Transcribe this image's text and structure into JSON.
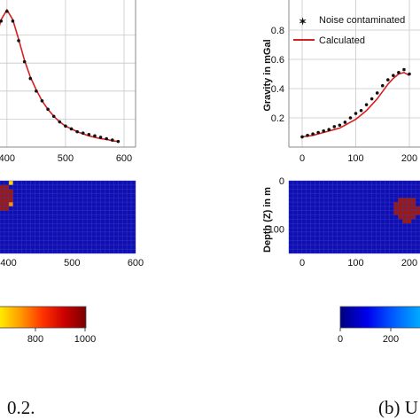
{
  "chart_data": [
    {
      "type": "line",
      "panel": "left-top",
      "xlim": [
        370,
        600
      ],
      "ylim": [
        0,
        1.0
      ],
      "x_ticks": [
        400,
        500,
        600
      ],
      "grid": true,
      "series": [
        {
          "style": "markers",
          "x": [
            370,
            380,
            390,
            400,
            410,
            420,
            430,
            440,
            450,
            460,
            470,
            480,
            490,
            500,
            510,
            520,
            530,
            540,
            550,
            560,
            570,
            580,
            590
          ],
          "y": [
            0.63,
            0.75,
            0.9,
            0.97,
            0.9,
            0.76,
            0.61,
            0.49,
            0.4,
            0.33,
            0.27,
            0.22,
            0.18,
            0.15,
            0.13,
            0.11,
            0.1,
            0.09,
            0.08,
            0.07,
            0.06,
            0.05,
            0.04
          ]
        },
        {
          "style": "line",
          "color": "#d61f1f",
          "x": [
            370,
            380,
            390,
            400,
            410,
            420,
            430,
            440,
            450,
            460,
            470,
            480,
            490,
            500,
            510,
            520,
            530,
            540,
            550,
            560,
            570,
            580,
            590
          ],
          "y": [
            0.62,
            0.76,
            0.91,
            0.98,
            0.91,
            0.77,
            0.62,
            0.5,
            0.41,
            0.33,
            0.27,
            0.22,
            0.18,
            0.15,
            0.13,
            0.11,
            0.095,
            0.08,
            0.07,
            0.06,
            0.055,
            0.045,
            0.04
          ]
        }
      ]
    },
    {
      "type": "heatmap",
      "panel": "left-bottom",
      "xlim": [
        370,
        600
      ],
      "x_ticks": [
        400,
        500,
        600
      ],
      "grid": true,
      "background_color": "#1010b0",
      "body_color": "#9a1a10",
      "body": {
        "x_center": 393,
        "z_center": 35,
        "x_radius": 18,
        "z_radius": 23
      },
      "highlight_cells": [
        {
          "x": 405,
          "z": 8,
          "value": 650
        },
        {
          "x": 406,
          "z": 45,
          "value": 880
        }
      ]
    },
    {
      "type": "line",
      "panel": "right-top",
      "ylabel": "Gravity in mGal",
      "xlim": [
        -20,
        270
      ],
      "ylim": [
        0.0,
        0.9
      ],
      "x_ticks": [
        0,
        100,
        200
      ],
      "y_ticks": [
        0.2,
        0.4,
        0.6,
        0.8
      ],
      "grid": true,
      "legend": "top-left",
      "series": [
        {
          "name": "Noise contaminated",
          "style": "markers",
          "x": [
            0,
            10,
            20,
            30,
            40,
            50,
            60,
            70,
            80,
            90,
            100,
            110,
            120,
            130,
            140,
            150,
            160,
            170,
            180,
            190,
            200
          ],
          "y": [
            0.07,
            0.08,
            0.09,
            0.1,
            0.11,
            0.12,
            0.14,
            0.15,
            0.17,
            0.2,
            0.23,
            0.25,
            0.29,
            0.33,
            0.37,
            0.42,
            0.46,
            0.49,
            0.51,
            0.53,
            0.5
          ]
        },
        {
          "name": "Calculated",
          "style": "line",
          "color": "#d61f1f",
          "x": [
            0,
            10,
            20,
            30,
            40,
            50,
            60,
            70,
            80,
            90,
            100,
            110,
            120,
            130,
            140,
            150,
            160,
            170,
            180,
            190,
            200
          ],
          "y": [
            0.07,
            0.075,
            0.08,
            0.09,
            0.1,
            0.11,
            0.12,
            0.13,
            0.15,
            0.17,
            0.19,
            0.22,
            0.25,
            0.29,
            0.33,
            0.38,
            0.43,
            0.47,
            0.5,
            0.51,
            0.49
          ]
        }
      ]
    },
    {
      "type": "heatmap",
      "panel": "right-bottom",
      "ylabel": "Depth (Z) in m",
      "xlim": [
        -20,
        270
      ],
      "ylim": [
        150,
        0
      ],
      "x_ticks": [
        0,
        100,
        200
      ],
      "y_ticks": [
        0,
        100
      ],
      "grid": true,
      "background_color": "#1010b0",
      "body_color": "#9a1a10",
      "body": {
        "x_center": 195,
        "z_center": 60,
        "x_radius": 22,
        "z_radius": 28
      }
    }
  ],
  "colorbars": [
    {
      "panel": "left",
      "ticks": [
        "800",
        "1000"
      ],
      "colors": [
        "#ffee00",
        "#ff9900",
        "#ff3300",
        "#cc0000",
        "#7a0000"
      ]
    },
    {
      "panel": "right",
      "ticks": [
        "0",
        "200"
      ],
      "colors": [
        "#000080",
        "#0000ee",
        "#0060ff",
        "#00b0ff"
      ]
    }
  ],
  "captions": {
    "left": "0.2.",
    "right": "(b) U"
  },
  "colors": {
    "line": "#d61f1f",
    "marker": "#111111",
    "grid": "#c8c8c8",
    "mesh_bg": "#1010b0",
    "body": "#9a1a10"
  }
}
